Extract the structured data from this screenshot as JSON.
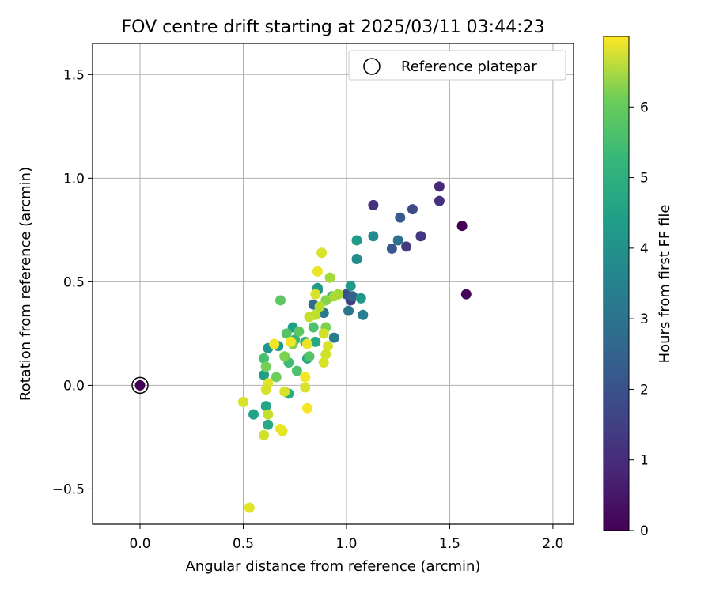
{
  "chart_data": {
    "type": "scatter",
    "title": "FOV centre drift starting at 2025/03/11 03:44:23",
    "xlabel": "Angular distance from reference (arcmin)",
    "ylabel": "Rotation from reference (arcmin)",
    "xlim": [
      -0.23,
      2.1
    ],
    "ylim": [
      -0.67,
      1.65
    ],
    "xticks": [
      0.0,
      0.5,
      1.0,
      1.5,
      2.0
    ],
    "xtick_labels": [
      "0.0",
      "0.5",
      "1.0",
      "1.5",
      "2.0"
    ],
    "yticks": [
      -0.5,
      0.0,
      0.5,
      1.0,
      1.5
    ],
    "ytick_labels": [
      "−0.5",
      "0.0",
      "0.5",
      "1.0",
      "1.5"
    ],
    "grid": true,
    "legend": {
      "placement": "top-right",
      "entries": [
        "Reference platepar"
      ]
    },
    "colorbar": {
      "label": "Hours from first FF file",
      "range": [
        0,
        7
      ],
      "ticks": [
        0,
        1,
        2,
        3,
        4,
        5,
        6
      ],
      "tick_labels": [
        "0",
        "1",
        "2",
        "3",
        "4",
        "5",
        "6"
      ],
      "colormap": "viridis"
    },
    "reference_point": {
      "x": 0.0,
      "y": 0.0,
      "c": 0.0
    },
    "points": [
      {
        "x": 1.56,
        "y": 0.77,
        "c": 0.0
      },
      {
        "x": 1.58,
        "y": 0.44,
        "c": 0.1
      },
      {
        "x": 1.45,
        "y": 0.96,
        "c": 0.8
      },
      {
        "x": 1.45,
        "y": 0.89,
        "c": 1.0
      },
      {
        "x": 1.13,
        "y": 0.87,
        "c": 1.0
      },
      {
        "x": 1.36,
        "y": 0.72,
        "c": 1.1
      },
      {
        "x": 1.29,
        "y": 0.67,
        "c": 1.2
      },
      {
        "x": 1.32,
        "y": 0.85,
        "c": 1.6
      },
      {
        "x": 1.02,
        "y": 0.41,
        "c": 1.3
      },
      {
        "x": 1.22,
        "y": 0.66,
        "c": 1.9
      },
      {
        "x": 1.26,
        "y": 0.81,
        "c": 2.0
      },
      {
        "x": 1.0,
        "y": 0.44,
        "c": 1.7
      },
      {
        "x": 1.03,
        "y": 0.43,
        "c": 2.2
      },
      {
        "x": 0.84,
        "y": 0.39,
        "c": 2.4
      },
      {
        "x": 1.25,
        "y": 0.7,
        "c": 2.6
      },
      {
        "x": 0.89,
        "y": 0.35,
        "c": 2.8
      },
      {
        "x": 1.01,
        "y": 0.36,
        "c": 2.8
      },
      {
        "x": 0.94,
        "y": 0.23,
        "c": 2.9
      },
      {
        "x": 1.08,
        "y": 0.34,
        "c": 3.0
      },
      {
        "x": 0.86,
        "y": 0.46,
        "c": 3.1
      },
      {
        "x": 1.13,
        "y": 0.72,
        "c": 3.4
      },
      {
        "x": 1.05,
        "y": 0.61,
        "c": 3.4
      },
      {
        "x": 1.05,
        "y": 0.7,
        "c": 3.8
      },
      {
        "x": 1.07,
        "y": 0.42,
        "c": 3.7
      },
      {
        "x": 1.02,
        "y": 0.48,
        "c": 3.8
      },
      {
        "x": 0.86,
        "y": 0.47,
        "c": 3.8
      },
      {
        "x": 0.62,
        "y": 0.18,
        "c": 3.6
      },
      {
        "x": 0.74,
        "y": 0.28,
        "c": 3.9
      },
      {
        "x": 0.67,
        "y": 0.19,
        "c": 3.9
      },
      {
        "x": 0.6,
        "y": 0.05,
        "c": 3.9
      },
      {
        "x": 0.55,
        "y": -0.14,
        "c": 4.0
      },
      {
        "x": 0.61,
        "y": -0.1,
        "c": 4.1
      },
      {
        "x": 0.62,
        "y": -0.19,
        "c": 4.2
      },
      {
        "x": 0.72,
        "y": -0.04,
        "c": 4.3
      },
      {
        "x": 0.81,
        "y": 0.13,
        "c": 4.2
      },
      {
        "x": 0.85,
        "y": 0.21,
        "c": 4.2
      },
      {
        "x": 0.93,
        "y": 0.43,
        "c": 4.4
      },
      {
        "x": 0.8,
        "y": 0.21,
        "c": 4.5
      },
      {
        "x": 0.75,
        "y": 0.22,
        "c": 4.6
      },
      {
        "x": 0.72,
        "y": 0.11,
        "c": 4.8
      },
      {
        "x": 0.76,
        "y": 0.07,
        "c": 5.0
      },
      {
        "x": 0.6,
        "y": 0.13,
        "c": 4.9
      },
      {
        "x": 0.71,
        "y": 0.25,
        "c": 5.1
      },
      {
        "x": 0.77,
        "y": 0.26,
        "c": 5.2
      },
      {
        "x": 0.82,
        "y": 0.14,
        "c": 5.1
      },
      {
        "x": 0.84,
        "y": 0.28,
        "c": 5.0
      },
      {
        "x": 0.68,
        "y": 0.41,
        "c": 5.2
      },
      {
        "x": 0.61,
        "y": 0.09,
        "c": 5.5
      },
      {
        "x": 0.66,
        "y": 0.04,
        "c": 5.4
      },
      {
        "x": 0.7,
        "y": 0.14,
        "c": 5.6
      },
      {
        "x": 0.74,
        "y": 0.2,
        "c": 5.6
      },
      {
        "x": 0.9,
        "y": 0.28,
        "c": 5.6
      },
      {
        "x": 0.9,
        "y": 0.41,
        "c": 5.7
      },
      {
        "x": 0.92,
        "y": 0.52,
        "c": 6.0
      },
      {
        "x": 0.96,
        "y": 0.44,
        "c": 6.0
      },
      {
        "x": 0.94,
        "y": 0.43,
        "c": 6.1
      },
      {
        "x": 0.87,
        "y": 0.38,
        "c": 6.2
      },
      {
        "x": 0.85,
        "y": 0.34,
        "c": 6.3
      },
      {
        "x": 0.82,
        "y": 0.33,
        "c": 6.4
      },
      {
        "x": 0.89,
        "y": 0.25,
        "c": 6.5
      },
      {
        "x": 0.91,
        "y": 0.19,
        "c": 6.6
      },
      {
        "x": 0.9,
        "y": 0.15,
        "c": 6.5
      },
      {
        "x": 0.89,
        "y": 0.11,
        "c": 6.6
      },
      {
        "x": 0.85,
        "y": 0.44,
        "c": 6.6
      },
      {
        "x": 0.88,
        "y": 0.64,
        "c": 6.6
      },
      {
        "x": 0.86,
        "y": 0.55,
        "c": 6.8
      },
      {
        "x": 0.81,
        "y": 0.2,
        "c": 6.8
      },
      {
        "x": 0.73,
        "y": 0.21,
        "c": 6.9
      },
      {
        "x": 0.65,
        "y": 0.2,
        "c": 6.9
      },
      {
        "x": 0.62,
        "y": 0.01,
        "c": 6.7
      },
      {
        "x": 0.61,
        "y": -0.02,
        "c": 6.6
      },
      {
        "x": 0.62,
        "y": -0.14,
        "c": 6.4
      },
      {
        "x": 0.6,
        "y": -0.24,
        "c": 6.5
      },
      {
        "x": 0.5,
        "y": -0.08,
        "c": 6.6
      },
      {
        "x": 0.7,
        "y": -0.03,
        "c": 6.6
      },
      {
        "x": 0.69,
        "y": -0.22,
        "c": 6.7
      },
      {
        "x": 0.68,
        "y": -0.21,
        "c": 6.8
      },
      {
        "x": 0.8,
        "y": -0.01,
        "c": 6.6
      },
      {
        "x": 0.8,
        "y": 0.04,
        "c": 6.9
      },
      {
        "x": 0.81,
        "y": -0.11,
        "c": 6.9
      },
      {
        "x": 0.53,
        "y": -0.59,
        "c": 6.7
      }
    ]
  }
}
